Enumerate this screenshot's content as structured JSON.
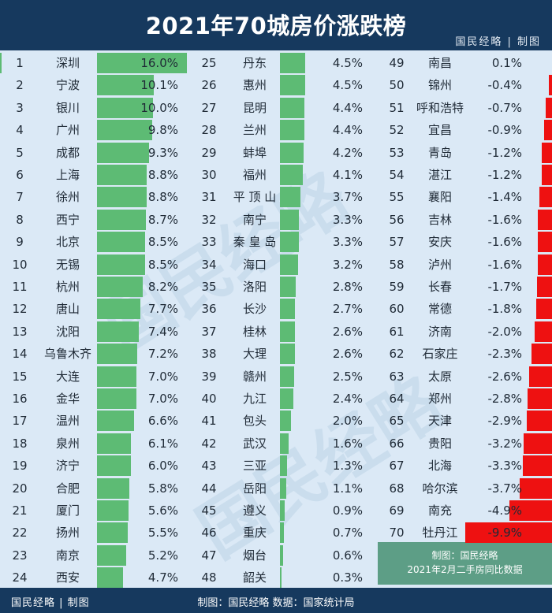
{
  "header": {
    "title": "2021年70城房价涨跌榜",
    "brand": "国民经略 | 制图"
  },
  "footer": {
    "brand": "国民经略 | 制图",
    "source": "制图：国民经略 数据：国家统计局"
  },
  "note": {
    "line1": "制图：国民经略",
    "line2": "2021年2月二手房同比数据"
  },
  "watermark": "国民经略",
  "colors": {
    "positive": "#5dbb74",
    "negative": "#ee1111",
    "header": "#16395e",
    "background": "#dbe9f6",
    "note": "#5d9e86"
  },
  "chart_data": {
    "type": "bar",
    "title": "2021年70城房价涨跌榜",
    "unit": "%",
    "ranks": [
      1,
      2,
      3,
      4,
      5,
      6,
      7,
      8,
      9,
      10,
      11,
      12,
      13,
      14,
      15,
      16,
      17,
      18,
      19,
      20,
      21,
      22,
      23,
      24,
      25,
      26,
      27,
      28,
      29,
      30,
      31,
      32,
      33,
      34,
      35,
      36,
      37,
      38,
      39,
      40,
      41,
      42,
      43,
      44,
      45,
      46,
      47,
      48,
      49,
      50,
      51,
      52,
      53,
      54,
      55,
      56,
      57,
      58,
      59,
      60,
      61,
      62,
      63,
      64,
      65,
      66,
      67,
      68,
      69,
      70
    ],
    "categories": [
      "深圳",
      "宁波",
      "银川",
      "广州",
      "成都",
      "上海",
      "徐州",
      "西宁",
      "北京",
      "无锡",
      "杭州",
      "唐山",
      "沈阳",
      "乌鲁木齐",
      "大连",
      "金华",
      "温州",
      "泉州",
      "济宁",
      "合肥",
      "厦门",
      "扬州",
      "南京",
      "西安",
      "丹东",
      "惠州",
      "昆明",
      "兰州",
      "蚌埠",
      "福州",
      "平 顶 山",
      "南宁",
      "秦 皇 岛",
      "海口",
      "洛阳",
      "长沙",
      "桂林",
      "大理",
      "赣州",
      "九江",
      "包头",
      "武汉",
      "三亚",
      "岳阳",
      "遵义",
      "重庆",
      "烟台",
      "韶关",
      "南昌",
      "锦州",
      "呼和浩特",
      "宜昌",
      "青岛",
      "湛江",
      "襄阳",
      "吉林",
      "安庆",
      "泸州",
      "长春",
      "常德",
      "济南",
      "石家庄",
      "太原",
      "郑州",
      "天津",
      "贵阳",
      "北海",
      "哈尔滨",
      "南充",
      "牡丹江"
    ],
    "values": [
      16.0,
      10.1,
      10.0,
      9.8,
      9.3,
      8.8,
      8.8,
      8.7,
      8.5,
      8.5,
      8.2,
      7.7,
      7.4,
      7.2,
      7.0,
      7.0,
      6.6,
      6.1,
      6.0,
      5.8,
      5.6,
      5.5,
      5.2,
      4.7,
      4.5,
      4.5,
      4.4,
      4.4,
      4.2,
      4.1,
      3.7,
      3.3,
      3.3,
      3.2,
      2.8,
      2.7,
      2.6,
      2.6,
      2.5,
      2.4,
      2.0,
      1.6,
      1.3,
      1.1,
      0.9,
      0.7,
      0.6,
      0.3,
      0.1,
      -0.4,
      -0.7,
      -0.9,
      -1.2,
      -1.2,
      -1.4,
      -1.6,
      -1.6,
      -1.6,
      -1.7,
      -1.8,
      -2.0,
      -2.3,
      -2.6,
      -2.8,
      -2.9,
      -3.2,
      -3.3,
      -3.7,
      -4.9,
      -9.9
    ],
    "labels": [
      "16.0%",
      "10.1%",
      "10.0%",
      "9.8%",
      "9.3%",
      "8.8%",
      "8.8%",
      "8.7%",
      "8.5%",
      "8.5%",
      "8.2%",
      "7.7%",
      "7.4%",
      "7.2%",
      "7.0%",
      "7.0%",
      "6.6%",
      "6.1%",
      "6.0%",
      "5.8%",
      "5.6%",
      "5.5%",
      "5.2%",
      "4.7%",
      "4.5%",
      "4.5%",
      "4.4%",
      "4.4%",
      "4.2%",
      "4.1%",
      "3.7%",
      "3.3%",
      "3.3%",
      "3.2%",
      "2.8%",
      "2.7%",
      "2.6%",
      "2.6%",
      "2.5%",
      "2.4%",
      "2.0%",
      "1.6%",
      "1.3%",
      "1.1%",
      "0.9%",
      "0.7%",
      "0.6%",
      "0.3%",
      "0.1%",
      "-0.4%",
      "-0.7%",
      "-0.9%",
      "-1.2%",
      "-1.2%",
      "-1.4%",
      "-1.6%",
      "-1.6%",
      "-1.6%",
      "-1.7%",
      "-1.8%",
      "-2.0%",
      "-2.3%",
      "-2.6%",
      "-2.8%",
      "-2.9%",
      "-3.2%",
      "-3.3%",
      "-3.7%",
      "-4.9%",
      "-9.9%"
    ]
  }
}
